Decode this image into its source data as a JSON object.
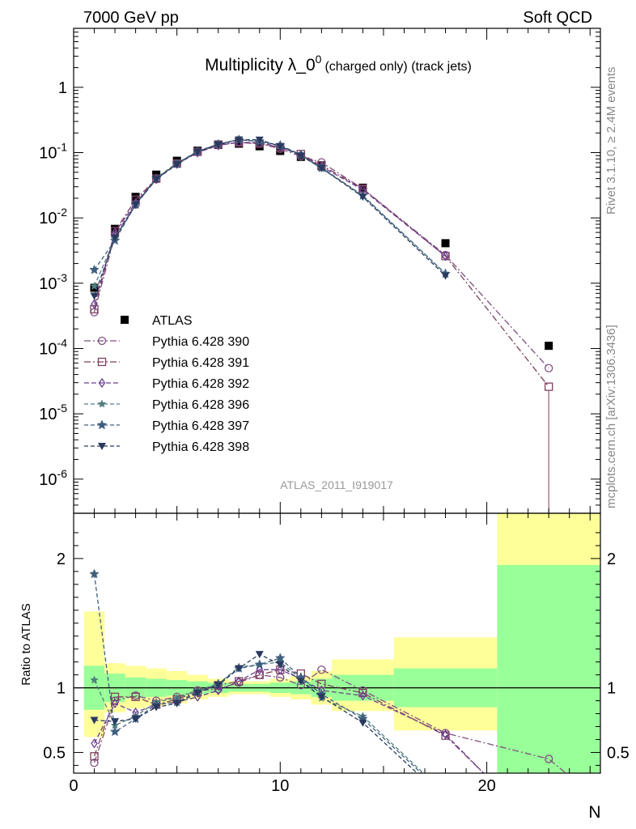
{
  "header": {
    "left": "7000 GeV pp",
    "right": "Soft QCD"
  },
  "side": {
    "top": "Rivet 3.1.10, ≥ 2.4M events",
    "bottom": "mcplots.cern.ch [arXiv:1306.3436]"
  },
  "analysis_id": "ATLAS_2011_I919017",
  "title": {
    "main": "Multiplicity λ_0",
    "sup": "0",
    "small": "(charged only) (track jets)"
  },
  "colors": {
    "data": "#000000",
    "p390": "#7f4f7f",
    "p391": "#7f3f5f",
    "p392": "#6a3f8f",
    "p396": "#4f7f7f",
    "p397": "#3f5f7f",
    "p398": "#2a3a5f",
    "band_inner": "#99ff99",
    "band_outer": "#ffff99"
  },
  "chart_data": [
    {
      "type": "scatter",
      "yscale": "log",
      "xlim": [
        0,
        25.5
      ],
      "ylim": [
        3e-07,
        8
      ],
      "xlabel": "N",
      "ytick_labels": [
        "1",
        "10^-1",
        "10^-2",
        "10^-3",
        "10^-4",
        "10^-5",
        "10^-6"
      ],
      "legend_placement": "lower-left",
      "series": [
        {
          "name": "ATLAS",
          "key": "data",
          "marker": "square-filled",
          "x": [
            1,
            2,
            3,
            4,
            5,
            6,
            7,
            8,
            9,
            10,
            11,
            12,
            14,
            18,
            23
          ],
          "y": [
            0.00085,
            0.0068,
            0.021,
            0.046,
            0.075,
            0.107,
            0.131,
            0.137,
            0.125,
            0.106,
            0.086,
            0.062,
            0.029,
            0.0041,
            0.00011
          ]
        },
        {
          "name": "Pythia 6.428 390",
          "key": "p390",
          "marker": "circle-open",
          "dash": "8,3,2,3",
          "x": [
            1,
            2,
            3,
            4,
            5,
            6,
            7,
            8,
            9,
            10,
            11,
            12,
            14,
            18,
            23
          ],
          "y": [
            0.00036,
            0.0054,
            0.016,
            0.039,
            0.068,
            0.103,
            0.13,
            0.143,
            0.138,
            0.114,
            0.088,
            0.071,
            0.028,
            0.0027,
            5e-05
          ]
        },
        {
          "name": "Pythia 6.428 391",
          "key": "p391",
          "marker": "square-open",
          "dash": "8,3,2,3",
          "x": [
            1,
            2,
            3,
            4,
            5,
            6,
            7,
            8,
            9,
            10,
            11,
            12,
            14,
            18,
            23
          ],
          "y": [
            0.0004,
            0.0063,
            0.019,
            0.04,
            0.068,
            0.103,
            0.133,
            0.143,
            0.137,
            0.121,
            0.095,
            0.064,
            0.028,
            0.0026,
            2.6e-05
          ]
        },
        {
          "name": "Pythia 6.428 392",
          "key": "p392",
          "marker": "diamond-open",
          "dash": "6,3",
          "x": [
            1,
            2,
            3,
            4,
            5,
            6,
            7,
            8,
            9,
            10,
            11,
            12,
            14,
            18
          ],
          "y": [
            0.00048,
            0.006,
            0.017,
            0.04,
            0.067,
            0.1,
            0.129,
            0.144,
            0.142,
            0.121,
            0.092,
            0.061,
            0.027,
            0.0026
          ]
        },
        {
          "name": "Pythia 6.428 396",
          "key": "p396",
          "marker": "star-small",
          "dash": "5,3",
          "x": [
            1,
            2,
            3,
            4,
            5,
            6,
            7,
            8,
            9,
            10,
            11,
            12,
            14,
            18
          ],
          "y": [
            0.0009,
            0.0048,
            0.016,
            0.041,
            0.069,
            0.105,
            0.135,
            0.158,
            0.148,
            0.127,
            0.092,
            0.057,
            0.022,
            0.0014
          ]
        },
        {
          "name": "Pythia 6.428 397",
          "key": "p397",
          "marker": "star",
          "dash": "5,3",
          "x": [
            1,
            2,
            3,
            4,
            5,
            6,
            7,
            8,
            9,
            10,
            11,
            12,
            14,
            18
          ],
          "y": [
            0.0016,
            0.0045,
            0.016,
            0.04,
            0.067,
            0.104,
            0.135,
            0.158,
            0.148,
            0.13,
            0.093,
            0.059,
            0.022,
            0.0014
          ]
        },
        {
          "name": "Pythia 6.428 398",
          "key": "p398",
          "marker": "triangle-down-filled",
          "dash": "5,3",
          "x": [
            1,
            2,
            3,
            4,
            5,
            6,
            7,
            8,
            9,
            10,
            11,
            12,
            14,
            18
          ],
          "y": [
            0.00064,
            0.005,
            0.016,
            0.039,
            0.066,
            0.103,
            0.133,
            0.158,
            0.157,
            0.125,
            0.09,
            0.058,
            0.021,
            0.0013
          ]
        }
      ]
    },
    {
      "type": "line",
      "xlim": [
        0,
        25.5
      ],
      "ylim": [
        0.34,
        2.35
      ],
      "ylabel": "Ratio to ATLAS",
      "xlabel": "N",
      "yticks": [
        0.5,
        1,
        2
      ],
      "ytick_labels": [
        "0.5",
        "1",
        "2"
      ],
      "xticks": [
        0,
        10,
        20
      ],
      "xtick_labels": [
        "0",
        "10",
        "20"
      ],
      "reference_line": 1,
      "bands": {
        "edges": [
          0.5,
          1.5,
          2.5,
          3.5,
          4.5,
          5.5,
          6.5,
          7.5,
          8.5,
          9.5,
          10.5,
          11.5,
          12.5,
          15.5,
          20.5,
          25.5
        ],
        "inner_low": [
          0.83,
          0.89,
          0.92,
          0.93,
          0.94,
          0.95,
          0.96,
          0.97,
          0.97,
          0.96,
          0.95,
          0.93,
          0.9,
          0.85,
          0.0
        ],
        "inner_high": [
          1.17,
          1.11,
          1.08,
          1.07,
          1.06,
          1.05,
          1.04,
          1.03,
          1.03,
          1.04,
          1.05,
          1.07,
          1.1,
          1.15,
          1.95
        ],
        "outer_low": [
          0.62,
          0.81,
          0.84,
          0.86,
          0.88,
          0.91,
          0.93,
          0.95,
          0.95,
          0.93,
          0.91,
          0.87,
          0.82,
          0.67,
          0.0
        ],
        "outer_high": [
          1.59,
          1.19,
          1.17,
          1.15,
          1.13,
          1.1,
          1.07,
          1.05,
          1.05,
          1.07,
          1.09,
          1.13,
          1.22,
          1.39,
          2.5
        ]
      },
      "series": [
        {
          "name": "Pythia 6.428 390",
          "key": "p390",
          "marker": "circle-open",
          "dash": "8,3,2,3",
          "x": [
            1,
            2,
            3,
            4,
            5,
            6,
            7,
            8,
            9,
            10,
            11,
            12,
            14,
            18,
            23,
            24.5
          ],
          "y": [
            0.42,
            0.9,
            0.94,
            0.9,
            0.93,
            0.98,
            0.99,
            1.04,
            1.1,
            1.08,
            1.02,
            1.14,
            0.98,
            0.65,
            0.45,
            0.25
          ]
        },
        {
          "name": "Pythia 6.428 391",
          "key": "p391",
          "marker": "square-open",
          "dash": "8,3,2,3",
          "x": [
            1,
            2,
            3,
            4,
            5,
            6,
            7,
            8,
            9,
            10,
            11,
            12,
            14,
            18,
            20.1
          ],
          "y": [
            0.47,
            0.93,
            0.93,
            0.87,
            0.91,
            0.97,
            1.02,
            1.05,
            1.1,
            1.14,
            1.11,
            1.03,
            0.96,
            0.63,
            0.3
          ]
        },
        {
          "name": "Pythia 6.428 392",
          "key": "p392",
          "marker": "diamond-open",
          "dash": "6,3",
          "x": [
            1,
            2,
            3,
            4,
            5,
            6,
            7,
            8,
            9,
            10,
            11,
            12,
            14,
            18,
            20.1
          ],
          "y": [
            0.57,
            0.88,
            0.81,
            0.87,
            0.89,
            0.93,
            0.98,
            1.05,
            1.14,
            1.14,
            1.07,
            0.98,
            0.94,
            0.64,
            0.3
          ]
        },
        {
          "name": "Pythia 6.428 396",
          "key": "p396",
          "marker": "star-small",
          "dash": "5,3",
          "x": [
            1,
            2,
            3,
            4,
            5,
            6,
            7,
            8,
            9,
            10,
            11,
            12,
            14,
            17.2
          ],
          "y": [
            1.06,
            0.71,
            0.78,
            0.89,
            0.92,
            0.98,
            1.03,
            1.16,
            1.18,
            1.2,
            1.07,
            0.92,
            0.78,
            0.3
          ]
        },
        {
          "name": "Pythia 6.428 397",
          "key": "p397",
          "marker": "star",
          "dash": "5,3",
          "x": [
            1,
            2,
            3,
            4,
            5,
            6,
            7,
            8,
            9,
            10,
            11,
            12,
            14,
            17.1
          ],
          "y": [
            1.88,
            0.66,
            0.76,
            0.87,
            0.89,
            0.97,
            1.03,
            1.15,
            1.18,
            1.23,
            1.08,
            0.95,
            0.76,
            0.3
          ]
        },
        {
          "name": "Pythia 6.428 398",
          "key": "p398",
          "marker": "triangle-down-filled",
          "dash": "5,3",
          "x": [
            1,
            2,
            3,
            4,
            5,
            6,
            7,
            8,
            9,
            10,
            11,
            12,
            14,
            16.9
          ],
          "y": [
            0.75,
            0.74,
            0.76,
            0.85,
            0.88,
            0.96,
            1.02,
            1.15,
            1.26,
            1.18,
            1.05,
            0.93,
            0.73,
            0.3
          ]
        }
      ]
    }
  ]
}
